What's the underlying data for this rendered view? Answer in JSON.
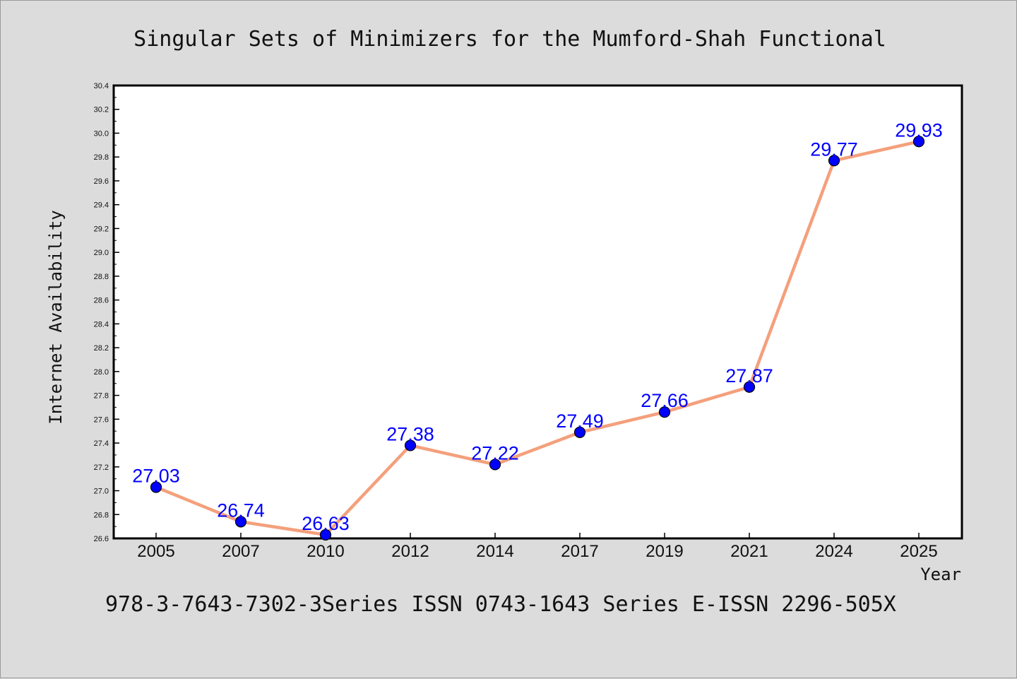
{
  "chart_data": {
    "type": "line",
    "title": "Singular Sets of Minimizers for the Mumford-Shah Functional",
    "xlabel": "Year",
    "ylabel": "Internet Availability",
    "categories": [
      "2005",
      "2007",
      "2010",
      "2012",
      "2014",
      "2017",
      "2019",
      "2021",
      "2024",
      "2025"
    ],
    "series": [
      {
        "values": [
          27.03,
          26.74,
          26.63,
          27.38,
          27.22,
          27.49,
          27.66,
          27.87,
          29.77,
          29.93
        ],
        "line_color": "#f4a07c",
        "marker_color": "#0000ff"
      }
    ],
    "data_label_color": "#0000ff",
    "ylim": [
      26.6,
      30.4
    ],
    "yticks": [
      "26.6",
      "26.8",
      "27.0",
      "27.2",
      "27.4",
      "27.6",
      "27.8",
      "28.0",
      "28.2",
      "28.4",
      "28.6",
      "28.8",
      "29.0",
      "29.2",
      "29.4",
      "29.6",
      "29.8",
      "30.0",
      "30.2",
      "30.4"
    ],
    "grid": false,
    "legend": "none",
    "footer": "978-3-7643-7302-3Series ISSN 0743-1643 Series E-ISSN 2296-505X"
  }
}
